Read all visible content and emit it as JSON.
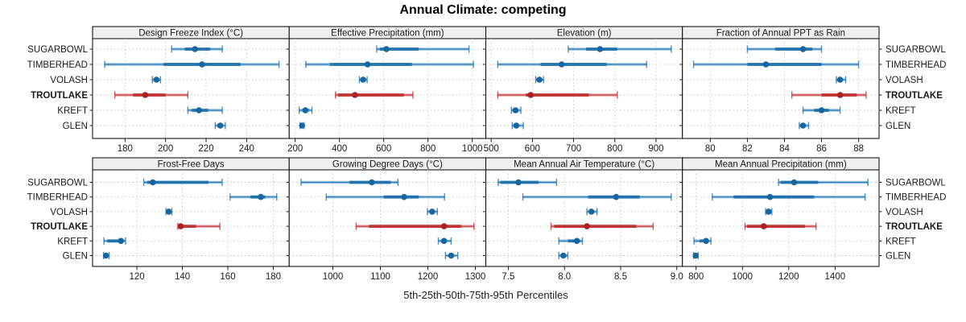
{
  "title": "Annual Climate: competing",
  "caption": "5th-25th-50th-75th-95th Percentiles",
  "sites": [
    "SUGARBOWL",
    "TIMBERHEAD",
    "VOLASH",
    "TROUTLAKE",
    "KREFT",
    "GLEN"
  ],
  "highlight_site": "TROUTLAKE",
  "colors": {
    "blue": "#2374ae",
    "blue_light": "#9cc5e0",
    "blue_dot": "#17669f",
    "red": "#c03434",
    "red_light": "#e4a8a8",
    "red_dot": "#ad2121",
    "grid": "#c4c4c4",
    "strip_bg": "#efefef",
    "panel_border": "#000000",
    "text": "#1a1a1a"
  },
  "chart_data": {
    "type": "trellis-dot-whisker",
    "percentiles": [
      5,
      25,
      50,
      75,
      95
    ],
    "site_order_top_to_bottom": [
      "SUGARBOWL",
      "TIMBERHEAD",
      "VOLASH",
      "TROUTLAKE",
      "KREFT",
      "GLEN"
    ],
    "panels": [
      {
        "title": "Design Freeze Index (°C)",
        "xlim": [
          164,
          261
        ],
        "ticks": [
          180,
          200,
          220,
          240
        ],
        "tick_labels": [
          "180",
          "200",
          "220",
          "240"
        ],
        "series": [
          [
            203,
            209.5,
            214.5,
            222,
            228
          ],
          [
            170,
            199,
            218,
            237,
            256
          ],
          [
            193.5,
            194.5,
            195.5,
            196.5,
            197.5
          ],
          [
            175,
            184,
            190,
            200,
            211
          ],
          [
            211,
            213,
            216.5,
            221,
            228
          ],
          [
            224.5,
            225.7,
            227,
            228.3,
            229.5
          ]
        ]
      },
      {
        "title": "Effective Precipitation (mm)",
        "xlim": [
          173,
          1061
        ],
        "ticks": [
          200,
          400,
          600,
          800,
          1000
        ],
        "tick_labels": [
          "200",
          "400",
          "600",
          "800",
          "1000"
        ],
        "series": [
          [
            568,
            582,
            612,
            758,
            985
          ],
          [
            248,
            357,
            527,
            727,
            1005
          ],
          [
            490,
            500,
            507,
            515,
            525
          ],
          [
            382,
            394,
            470,
            691,
            732
          ],
          [
            218,
            233,
            246,
            261,
            276
          ],
          [
            222,
            227,
            231,
            235,
            240
          ]
        ]
      },
      {
        "title": "Elevation (m)",
        "xlim": [
          487,
          964
        ],
        "ticks": [
          500,
          600,
          700,
          800,
          900
        ],
        "tick_labels": [
          "500",
          "600",
          "700",
          "800",
          "900"
        ],
        "series": [
          [
            687,
            730,
            764,
            806,
            937
          ],
          [
            516,
            620,
            671,
            780,
            877
          ],
          [
            608,
            613,
            617,
            621,
            627
          ],
          [
            516,
            584,
            596,
            737,
            806
          ],
          [
            549,
            554,
            559,
            563,
            572
          ],
          [
            551,
            556,
            561,
            566,
            578
          ]
        ]
      },
      {
        "title": "Fraction of Annual PPT as Rain",
        "xlim": [
          78.5,
          89.1
        ],
        "ticks": [
          80,
          82,
          84,
          86,
          88
        ],
        "tick_labels": [
          "80",
          "82",
          "84",
          "86",
          "88"
        ],
        "series": [
          [
            82,
            83.5,
            85,
            85.5,
            86
          ],
          [
            79.1,
            82,
            83,
            86,
            88
          ],
          [
            86.8,
            86.9,
            87,
            87.1,
            87.3
          ],
          [
            84.4,
            86,
            87,
            87.9,
            88.4
          ],
          [
            85,
            85.6,
            86,
            86.4,
            87
          ],
          [
            84.8,
            84.9,
            85,
            85.15,
            85.3
          ]
        ]
      },
      {
        "title": "Frost-Free Days",
        "xlim": [
          100.5,
          187
        ],
        "ticks": [
          120,
          140,
          160,
          180
        ],
        "tick_labels": [
          "120",
          "140",
          "160",
          "180"
        ],
        "series": [
          [
            123,
            124.5,
            127,
            151.5,
            157.5
          ],
          [
            161,
            170,
            174.5,
            176.5,
            181.5
          ],
          [
            132.8,
            133.4,
            134,
            134.6,
            135.4
          ],
          [
            138,
            138.6,
            139.3,
            146,
            156.5
          ],
          [
            105.5,
            107,
            113,
            114,
            115
          ],
          [
            105.3,
            105.9,
            106.4,
            107,
            107.8
          ]
        ]
      },
      {
        "title": "Growing Degree Days (°C)",
        "xlim": [
          908,
          1322
        ],
        "ticks": [
          1000,
          1100,
          1200,
          1300
        ],
        "tick_labels": [
          "1000",
          "1100",
          "1200",
          "1300"
        ],
        "series": [
          [
            933,
            1035,
            1082,
            1122,
            1137
          ],
          [
            986,
            1107,
            1150,
            1181,
            1235
          ],
          [
            1199,
            1204,
            1209,
            1214,
            1220
          ],
          [
            1049,
            1076,
            1234,
            1270,
            1297
          ],
          [
            1222,
            1229,
            1234,
            1240,
            1249
          ],
          [
            1237,
            1243,
            1249,
            1255,
            1263
          ]
        ]
      },
      {
        "title": "Mean Annual Air Temperature (°C)",
        "xlim": [
          7.3,
          9.05
        ],
        "ticks": [
          7.5,
          8.0,
          8.5,
          9.0
        ],
        "tick_labels": [
          "7.5",
          "8.0",
          "8.5",
          "9.0"
        ],
        "series": [
          [
            7.41,
            7.43,
            7.59,
            7.77,
            7.93
          ],
          [
            7.63,
            8.21,
            8.46,
            8.67,
            8.95
          ],
          [
            8.2,
            8.22,
            8.24,
            8.26,
            8.29
          ],
          [
            7.88,
            7.91,
            8.2,
            8.64,
            8.79
          ],
          [
            7.95,
            8.03,
            8.11,
            8.14,
            8.16
          ],
          [
            7.95,
            7.97,
            7.99,
            8.01,
            8.03
          ]
        ]
      },
      {
        "title": "Mean Annual Precipitation (mm)",
        "xlim": [
          741,
          1590
        ],
        "ticks": [
          800,
          1000,
          1200,
          1400
        ],
        "tick_labels": [
          "800",
          "1000",
          "1200",
          "1400"
        ],
        "series": [
          [
            1156,
            1165,
            1223,
            1327,
            1542
          ],
          [
            870,
            962,
            1119,
            1310,
            1530
          ],
          [
            1100,
            1107,
            1113,
            1119,
            1127
          ],
          [
            1011,
            1020,
            1092,
            1270,
            1318
          ],
          [
            791,
            815,
            843,
            853,
            864
          ],
          [
            789,
            793,
            798,
            803,
            809
          ]
        ]
      }
    ]
  }
}
